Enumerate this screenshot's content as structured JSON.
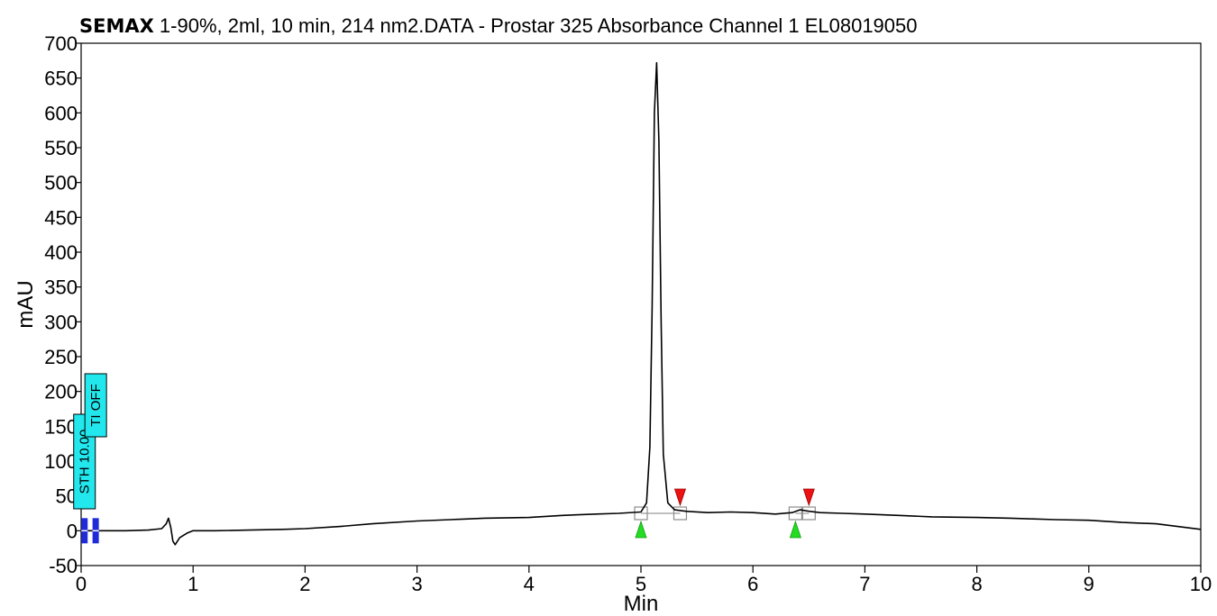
{
  "header": {
    "title_bold": "SEMAX",
    "title_rest": " 1-90%, 2ml, 10 min, 214 nm2.DATA - Prostar 325 Absorbance Channel 1 EL08019050"
  },
  "chart_data": {
    "type": "line",
    "title": "SEMAX 1-90%, 2ml, 10 min, 214 nm2.DATA - Prostar 325 Absorbance Channel 1 EL08019050",
    "xlabel": "Min",
    "ylabel": "mAU",
    "xlim": [
      0,
      10
    ],
    "ylim": [
      -50,
      700
    ],
    "x_ticks": [
      "0",
      "1",
      "2",
      "3",
      "4",
      "5",
      "6",
      "7",
      "8",
      "9",
      "10"
    ],
    "y_ticks": [
      "-50",
      "0",
      "50",
      "100",
      "150",
      "200",
      "250",
      "300",
      "350",
      "400",
      "450",
      "500",
      "550",
      "600",
      "650",
      "700"
    ],
    "grid": false,
    "series": [
      {
        "color": "#000000",
        "x": [
          0,
          0.1,
          0.2,
          0.4,
          0.6,
          0.72,
          0.76,
          0.78,
          0.8,
          0.82,
          0.84,
          0.88,
          0.95,
          1.0,
          1.2,
          1.5,
          1.8,
          2.0,
          2.3,
          2.6,
          3.0,
          3.3,
          3.6,
          4.0,
          4.3,
          4.6,
          4.8,
          5.0,
          5.05,
          5.08,
          5.1,
          5.12,
          5.14,
          5.16,
          5.18,
          5.2,
          5.24,
          5.3,
          5.4,
          5.6,
          5.8,
          6.0,
          6.2,
          6.35,
          6.42,
          6.5,
          6.6,
          6.8,
          7.0,
          7.3,
          7.6,
          8.0,
          8.3,
          8.5,
          8.7,
          9.0,
          9.3,
          9.6,
          9.8,
          10.0
        ],
        "y": [
          0,
          0,
          0,
          0,
          1,
          3,
          10,
          18,
          5,
          -15,
          -20,
          -10,
          -3,
          0,
          0,
          1,
          2,
          3,
          6,
          10,
          14,
          16,
          18,
          19,
          22,
          24,
          25,
          27,
          40,
          120,
          320,
          600,
          672,
          560,
          300,
          110,
          40,
          30,
          28,
          26,
          27,
          26,
          24,
          26,
          30,
          28,
          26,
          25,
          24,
          22,
          20,
          19,
          18,
          17,
          16,
          15,
          12,
          10,
          6,
          2
        ]
      }
    ],
    "events": [
      {
        "label": "STH 10.00",
        "x": 0.03
      },
      {
        "label": "TI OFF",
        "x": 0.13
      }
    ],
    "peak_markers": {
      "start": [
        5.0,
        6.38
      ],
      "end": [
        5.35,
        6.5
      ],
      "baseline_y": 25
    }
  }
}
